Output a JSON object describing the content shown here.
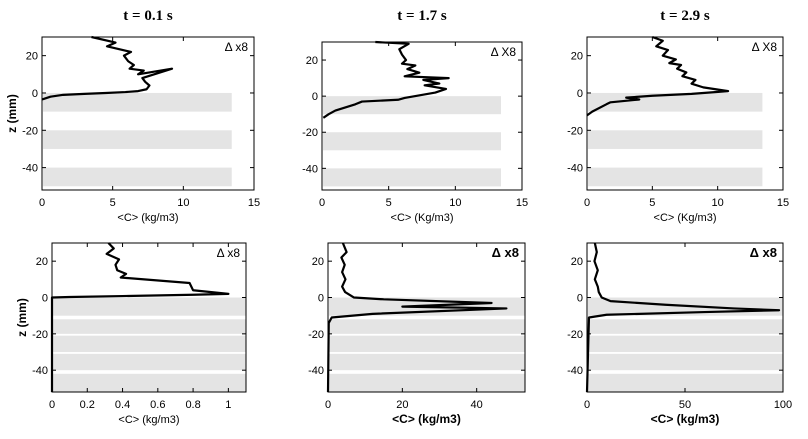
{
  "chart_data": [
    {
      "type": "line",
      "title": "t = 0.1 s",
      "xlabel": "<C>  (kg/m3)",
      "ylabel": "z (mm)",
      "annotation": "Δ x8",
      "xlim": [
        0,
        15
      ],
      "ylim": [
        -52,
        30
      ],
      "xticks": [
        0,
        5,
        10,
        15
      ],
      "yticks": [
        -40,
        -20,
        0,
        20
      ],
      "bands": [
        [
          -10,
          0
        ],
        [
          -30,
          -20
        ],
        [
          -50,
          -40
        ]
      ],
      "x": [
        3.5,
        5.2,
        4.6,
        6.3,
        5.8,
        6.1,
        6.5,
        6.2,
        7.2,
        6.8,
        9.2,
        7.1,
        7.3,
        7.6,
        7.4,
        6.8,
        5.9,
        4.5,
        3.0,
        1.5,
        0.6,
        0.2,
        0.0
      ],
      "y": [
        30,
        27,
        25,
        22,
        20,
        17,
        15,
        13,
        12,
        10,
        13,
        8,
        6,
        4,
        2,
        1,
        0.5,
        0,
        -0.5,
        -1,
        -2,
        -3,
        -3.5
      ]
    },
    {
      "type": "line",
      "title": "t = 1.7 s",
      "xlabel": "<C>  (Kg/m3)",
      "ylabel": "",
      "annotation": "Δ X8",
      "xlim": [
        0,
        15
      ],
      "ylim": [
        -52,
        30
      ],
      "xticks": [
        0,
        5,
        10,
        15
      ],
      "yticks": [
        -40,
        -20,
        0,
        20
      ],
      "bands": [
        [
          -10,
          0
        ],
        [
          -30,
          -20
        ],
        [
          -50,
          -40
        ]
      ],
      "x": [
        4.0,
        6.5,
        5.8,
        6.0,
        6.3,
        6.0,
        7.0,
        6.4,
        7.3,
        6.2,
        9.5,
        7.6,
        8.8,
        7.7,
        9.3,
        8.5,
        6.2,
        5.7,
        3.0,
        2.5,
        1.0,
        0.5,
        0.1
      ],
      "y": [
        30,
        29,
        26,
        23,
        20,
        18,
        17,
        15,
        13,
        11,
        10,
        9,
        7,
        6,
        4,
        2,
        -1,
        -2,
        -3,
        -4.5,
        -8,
        -10,
        -12
      ]
    },
    {
      "type": "line",
      "title": "t = 2.9 s",
      "xlabel": "<C>  (Kg/m3)",
      "ylabel": "",
      "annotation": "Δ X8",
      "xlim": [
        0,
        15
      ],
      "ylim": [
        -52,
        30
      ],
      "xticks": [
        0,
        5,
        10,
        15
      ],
      "yticks": [
        -40,
        -20,
        0,
        20
      ],
      "bands": [
        [
          -10,
          0
        ],
        [
          -30,
          -20
        ],
        [
          -50,
          -40
        ]
      ],
      "x": [
        5.0,
        5.8,
        5.3,
        6.2,
        5.8,
        6.8,
        6.3,
        7.2,
        6.9,
        7.6,
        7.3,
        8.3,
        8.0,
        8.9,
        10.8,
        8.0,
        5.0,
        3.0,
        4.0,
        1.8,
        1.5,
        0.4,
        0.0
      ],
      "y": [
        30,
        28,
        25,
        23,
        20,
        18,
        16,
        15,
        13,
        11,
        9,
        7,
        5,
        3,
        1,
        -0.5,
        -1.5,
        -2.5,
        -3.5,
        -5,
        -6,
        -10,
        -12
      ]
    },
    {
      "type": "line",
      "title": "",
      "xlabel": "<C>  (kg/m3)",
      "ylabel": "z (mm)",
      "annotation": "Δ x8",
      "xlim": [
        0,
        1.1
      ],
      "ylim": [
        -52,
        30
      ],
      "xticks": [
        0,
        0.2,
        0.4,
        0.6,
        0.8,
        1
      ],
      "yticks": [
        -40,
        -20,
        0,
        20
      ],
      "bands": [
        [
          -10,
          0
        ],
        [
          -20,
          -12
        ],
        [
          -30,
          -21
        ],
        [
          -40,
          -31
        ],
        [
          -52,
          -42
        ]
      ],
      "x": [
        0.32,
        0.35,
        0.31,
        0.38,
        0.36,
        0.37,
        0.42,
        0.39,
        0.78,
        0.8,
        1.0,
        0.8,
        0.4,
        0.1,
        0.0,
        0.0
      ],
      "y": [
        30,
        27,
        24,
        21,
        18,
        15,
        13,
        11,
        8,
        4,
        2,
        1.5,
        0.8,
        0.3,
        0,
        -52
      ]
    },
    {
      "type": "line",
      "title": "",
      "xlabel": "<C>  (kg/m3)",
      "ylabel": "",
      "annotation": "Δ x8",
      "xlim": [
        0,
        53
      ],
      "ylim": [
        -52,
        30
      ],
      "xticks": [
        0,
        20,
        40
      ],
      "yticks": [
        -40,
        -20,
        0,
        20
      ],
      "bands": [
        [
          -10,
          0
        ],
        [
          -20,
          -12
        ],
        [
          -30,
          -21
        ],
        [
          -40,
          -31
        ],
        [
          -52,
          -42
        ]
      ],
      "x": [
        4.0,
        5.0,
        3.6,
        4.5,
        3.8,
        4.7,
        3.8,
        4.6,
        7.0,
        15.0,
        44.0,
        20.0,
        48.0,
        12.0,
        1.0,
        0.2,
        0.0
      ],
      "y": [
        30,
        25,
        22,
        18,
        14,
        10,
        6,
        3,
        0,
        -1,
        -3,
        -5,
        -6,
        -9,
        -11,
        -14,
        -52
      ]
    },
    {
      "type": "line",
      "title": "",
      "xlabel": "<C>  (kg/m3)",
      "ylabel": "",
      "annotation": "Δ x8",
      "xlim": [
        0,
        100
      ],
      "ylim": [
        -52,
        30
      ],
      "xticks": [
        0,
        50,
        100
      ],
      "yticks": [
        -40,
        -20,
        0,
        20
      ],
      "bands": [
        [
          -10,
          0
        ],
        [
          -20,
          -12
        ],
        [
          -30,
          -21
        ],
        [
          -40,
          -31
        ],
        [
          -52,
          -42
        ]
      ],
      "x": [
        4.0,
        5.0,
        3.8,
        5.5,
        4.0,
        5.5,
        6.0,
        7.5,
        12.0,
        40.0,
        75.0,
        98.0,
        60.0,
        10.0,
        1.0,
        0.0
      ],
      "y": [
        30,
        25,
        20,
        15,
        10,
        6,
        3,
        0,
        -2,
        -4,
        -6,
        -7,
        -8,
        -9.5,
        -11,
        -52
      ]
    }
  ]
}
